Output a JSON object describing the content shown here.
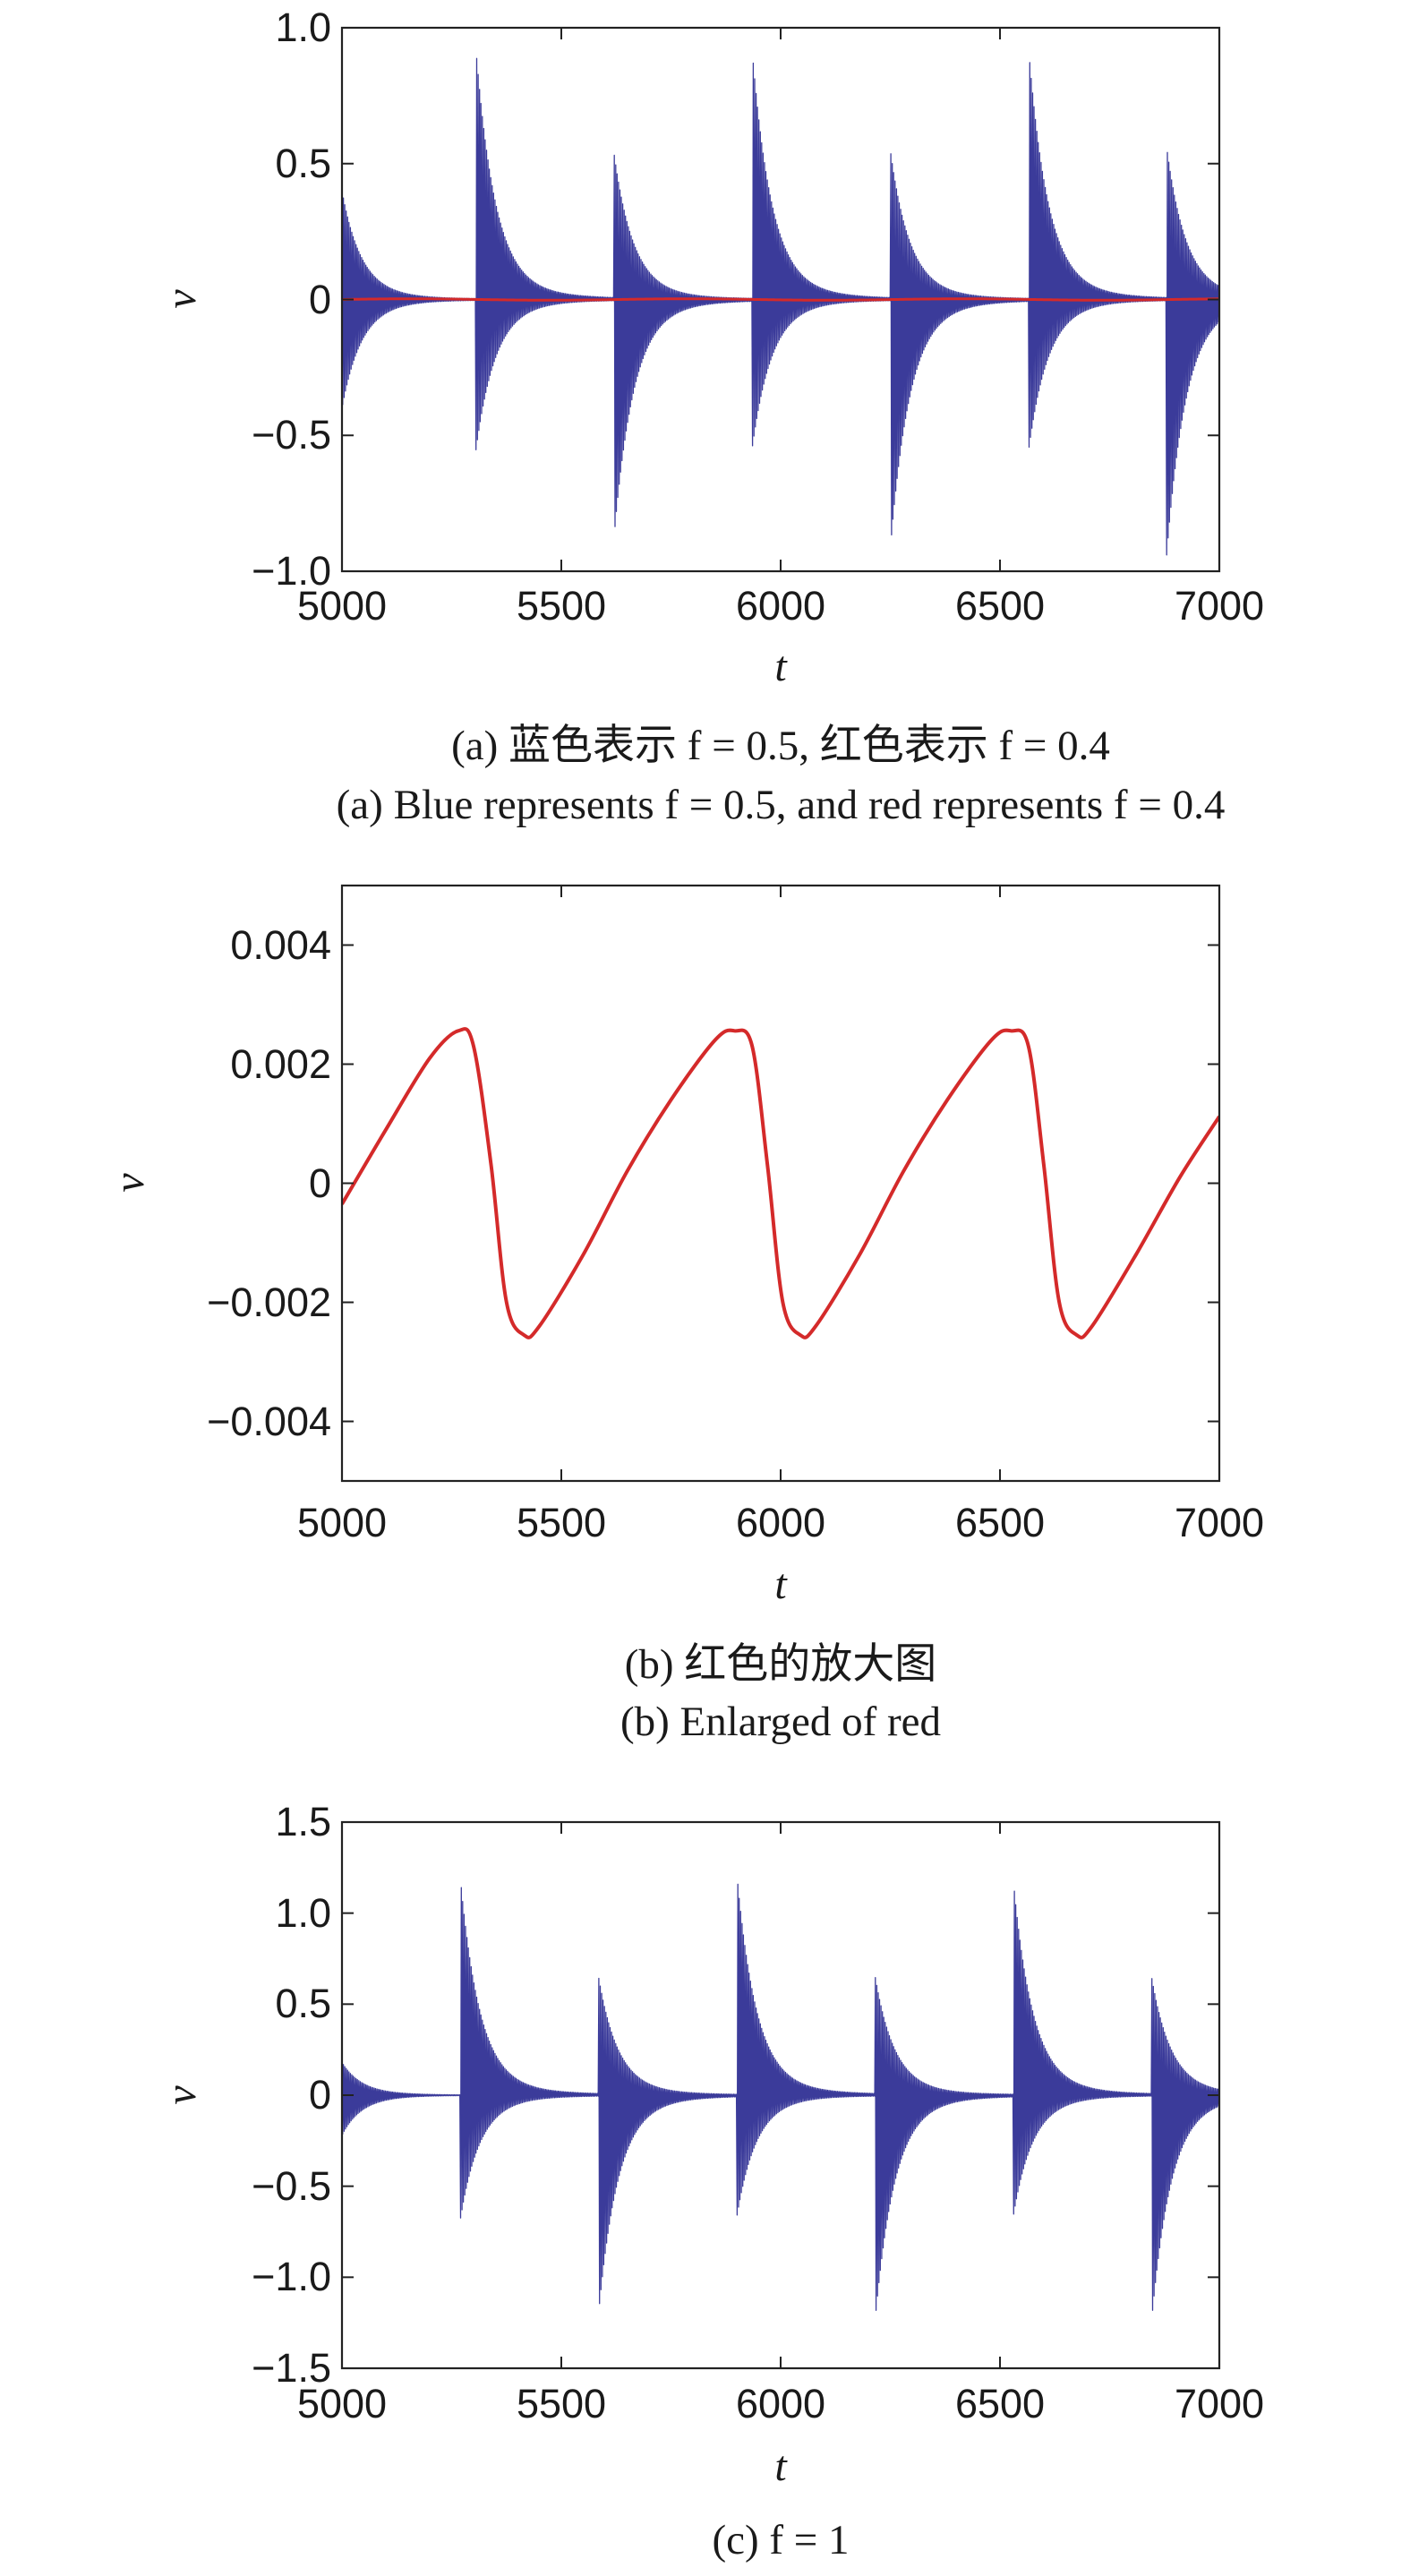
{
  "chart_data": [
    {
      "id": "a",
      "type": "line",
      "xlabel": "t",
      "ylabel": "v",
      "xlim": [
        5000,
        7000
      ],
      "ylim": [
        -1.0,
        1.0
      ],
      "xticks": [
        5000,
        5500,
        6000,
        6500,
        7000
      ],
      "xtick_labels": [
        "5000",
        "5500",
        "6000",
        "6500",
        "7000"
      ],
      "yticks": [
        -1.0,
        -0.5,
        0,
        0.5,
        1.0
      ],
      "ytick_labels": [
        "−1.0",
        "−0.5",
        "0",
        "0.5",
        "1.0"
      ],
      "caption_zh": "(a) 蓝色表示 f = 0.5, 红色表示 f = 0.4",
      "caption_en": "(a) Blue represents f = 0.5, and red represents f = 0.4",
      "series": [
        {
          "color": "#3b3b9a",
          "style": "decaying-oscillation",
          "decay_time": 45,
          "bursts": [
            {
              "t": 5000,
              "up": 0.4,
              "down": -0.4
            },
            {
              "t": 5305,
              "up": 0.93,
              "down": -0.56
            },
            {
              "t": 5620,
              "up": 0.54,
              "down": -0.88
            },
            {
              "t": 5935,
              "up": 0.92,
              "down": -0.55
            },
            {
              "t": 6250,
              "up": 0.55,
              "down": -0.92
            },
            {
              "t": 6565,
              "up": 0.93,
              "down": -0.56
            },
            {
              "t": 6880,
              "up": 0.56,
              "down": -0.94
            }
          ]
        },
        {
          "color": "#d42a2a",
          "style": "near-zero",
          "amplitude": 0.0026
        }
      ]
    },
    {
      "id": "b",
      "type": "line",
      "xlabel": "t",
      "ylabel": "v",
      "xlim": [
        5000,
        7000
      ],
      "ylim": [
        -0.005,
        0.005
      ],
      "xticks": [
        5000,
        5500,
        6000,
        6500,
        7000
      ],
      "xtick_labels": [
        "5000",
        "5500",
        "6000",
        "6500",
        "7000"
      ],
      "yticks": [
        -0.004,
        -0.002,
        0,
        0.002,
        0.004
      ],
      "ytick_labels": [
        "−0.004",
        "−0.002",
        "0",
        "0.002",
        "0.004"
      ],
      "caption_zh": "(b) 红色的放大图",
      "caption_en": "(b) Enlarged of red",
      "series": [
        {
          "color": "#d42a2a",
          "style": "smooth",
          "points": [
            [
              5000,
              -0.00035
            ],
            [
              5100,
              0.0009
            ],
            [
              5200,
              0.0021
            ],
            [
              5265,
              0.00256
            ],
            [
              5300,
              0.0023
            ],
            [
              5340,
              0.0003
            ],
            [
              5375,
              -0.002
            ],
            [
              5415,
              -0.00255
            ],
            [
              5450,
              -0.0024
            ],
            [
              5550,
              -0.0012
            ],
            [
              5650,
              0.0002
            ],
            [
              5750,
              0.0014
            ],
            [
              5850,
              0.0024
            ],
            [
              5895,
              0.00256
            ],
            [
              5935,
              0.0023
            ],
            [
              5970,
              0.0003
            ],
            [
              6005,
              -0.002
            ],
            [
              6045,
              -0.00255
            ],
            [
              6080,
              -0.0024
            ],
            [
              6180,
              -0.0012
            ],
            [
              6280,
              0.0002
            ],
            [
              6380,
              0.0014
            ],
            [
              6480,
              0.0024
            ],
            [
              6525,
              0.00256
            ],
            [
              6565,
              0.0023
            ],
            [
              6600,
              0.0003
            ],
            [
              6635,
              -0.002
            ],
            [
              6675,
              -0.00255
            ],
            [
              6710,
              -0.0024
            ],
            [
              6810,
              -0.0012
            ],
            [
              6910,
              0.0001
            ],
            [
              7000,
              0.00112
            ]
          ]
        }
      ]
    },
    {
      "id": "c",
      "type": "line",
      "xlabel": "t",
      "ylabel": "v",
      "xlim": [
        5000,
        7000
      ],
      "ylim": [
        -1.5,
        1.5
      ],
      "xticks": [
        5000,
        5500,
        6000,
        6500,
        7000
      ],
      "xtick_labels": [
        "5000",
        "5500",
        "6000",
        "6500",
        "7000"
      ],
      "yticks": [
        -1.5,
        -1.0,
        -0.5,
        0,
        0.5,
        1.0,
        1.5
      ],
      "ytick_labels": [
        "−1.5",
        "−1.0",
        "−0.5",
        "0",
        "0.5",
        "1.0",
        "1.5"
      ],
      "caption": "(c) f = 1",
      "series": [
        {
          "color": "#3b3b9a",
          "style": "decaying-oscillation",
          "decay_time": 45,
          "bursts": [
            {
              "t": 5000,
              "up": 0.18,
              "down": -0.22
            },
            {
              "t": 5270,
              "up": 1.19,
              "down": -0.68
            },
            {
              "t": 5585,
              "up": 0.65,
              "down": -1.2
            },
            {
              "t": 5900,
              "up": 1.22,
              "down": -0.67
            },
            {
              "t": 6215,
              "up": 0.66,
              "down": -1.25
            },
            {
              "t": 6530,
              "up": 1.19,
              "down": -0.67
            },
            {
              "t": 6845,
              "up": 0.66,
              "down": -1.26
            }
          ]
        }
      ]
    }
  ]
}
